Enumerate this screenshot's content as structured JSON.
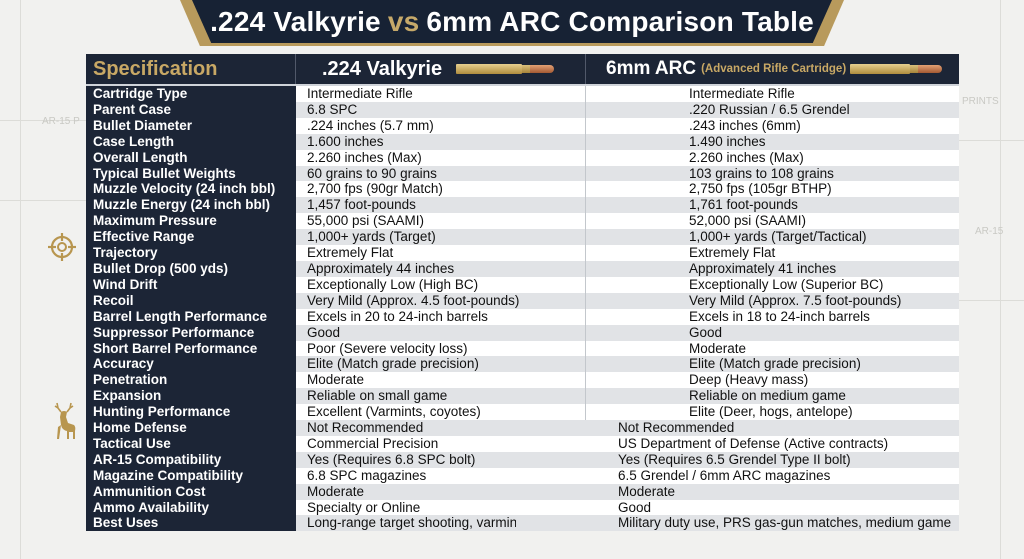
{
  "title": {
    "left": ".224 Valkyrie",
    "vs": "vs",
    "right": "6mm ARC Comparison Table"
  },
  "background_labels": [
    "AR-15 P",
    "PRINTS",
    "AR-15"
  ],
  "header": {
    "spec": "Specification",
    "col1": ".224 Valkyrie",
    "col2": "6mm ARC",
    "col2_sub": "(Advanced Rifle Cartridge)"
  },
  "colors": {
    "navy": "#1c2536",
    "gold": "#c8a865",
    "row_alt": "#e1e3e6"
  },
  "icons": [
    "cartridge-icon",
    "crosshair-icon",
    "deer-icon"
  ],
  "rows": [
    {
      "label": "Cartridge Type",
      "valkyrie": "Intermediate Rifle",
      "arc": "Intermediate Rifle"
    },
    {
      "label": "Parent Case",
      "valkyrie": "6.8 SPC",
      "arc": ".220 Russian  / 6.5 Grendel"
    },
    {
      "label": "Bullet Diameter",
      "valkyrie": ".224 inches (5.7 mm)",
      "arc": ".243 inches (6mm)"
    },
    {
      "label": "Case Length",
      "valkyrie": "1.600 inches",
      "arc": "1.490 inches"
    },
    {
      "label": "Overall Length",
      "valkyrie": "2.260 inches (Max)",
      "arc": "2.260 inches (Max)"
    },
    {
      "label": "Typical Bullet Weights",
      "valkyrie": "60 grains to 90 grains",
      "arc": "103 grains to 108 grains"
    },
    {
      "label": "Muzzle Velocity (24 inch bbl)",
      "valkyrie": "2,700 fps (90gr Match)",
      "arc": "2,750 fps (105gr BTHP)"
    },
    {
      "label": "Muzzle Energy (24 inch bbl)",
      "valkyrie": "1,457 foot-pounds",
      "arc": "1,761 foot-pounds"
    },
    {
      "label": "Maximum Pressure",
      "valkyrie": "55,000 psi (SAAMI)",
      "arc": "52,000 psi (SAAMI)"
    },
    {
      "label": "Effective Range",
      "valkyrie": "1,000+ yards (Target)",
      "arc": "1,000+ yards (Target/Tactical)"
    },
    {
      "label": "Trajectory",
      "valkyrie": "Extremely Flat",
      "arc": "Extremely Flat"
    },
    {
      "label": "Bullet Drop (500 yds)",
      "valkyrie": "Approximately 44 inches",
      "arc": "Approximately 41 inches"
    },
    {
      "label": "Wind Drift",
      "valkyrie": "Exceptionally Low (High BC)",
      "arc": "Exceptionally Low (Superior BC)"
    },
    {
      "label": "Recoil",
      "valkyrie": "Very Mild (Approx. 4.5 foot-pounds)",
      "arc": "Very Mild (Approx. 7.5 foot-pounds)"
    },
    {
      "label": "Barrel Length Performance",
      "valkyrie": "Excels in 20 to 24-inch barrels",
      "arc": "Excels in 18 to 24-inch barrels"
    },
    {
      "label": "Suppressor Performance",
      "valkyrie": "Good",
      "arc": "Good"
    },
    {
      "label": "Short Barrel Performance",
      "valkyrie": "Poor (Severe velocity loss)",
      "arc": "Moderate"
    },
    {
      "label": "Accuracy",
      "valkyrie": "Elite (Match grade precision)",
      "arc": "Elite (Match grade precision)"
    },
    {
      "label": "Penetration",
      "valkyrie": "Moderate",
      "arc": "Deep (Heavy mass)"
    },
    {
      "label": "Expansion",
      "valkyrie": "Reliable on small game",
      "arc": "Reliable on medium game"
    },
    {
      "label": "Hunting Performance",
      "valkyrie": "Excellent (Varmints, coyotes)",
      "arc": "Elite (Deer, hogs, antelope)"
    },
    {
      "label": "Home Defense",
      "valkyrie": "Not Recommended",
      "arc": "Not Recommended",
      "wide": true
    },
    {
      "label": "Tactical Use",
      "valkyrie": "Commercial Precision",
      "arc": "US Department of Defense (Active contracts)",
      "wide": true
    },
    {
      "label": "AR-15 Compatibility",
      "valkyrie": "Yes (Requires 6.8 SPC bolt)",
      "arc": "Yes (Requires 6.5 Grendel Type II bolt)",
      "wide": true
    },
    {
      "label": "Magazine Compatibility",
      "valkyrie": "6.8 SPC magazines",
      "arc": "6.5 Grendel / 6mm ARC magazines",
      "wide": true
    },
    {
      "label": "Ammunition Cost",
      "valkyrie": "Moderate",
      "arc": "Moderate",
      "wide": true
    },
    {
      "label": "Ammo Availability",
      "valkyrie": "Specialty or Online",
      "arc": "Good",
      "wide": true
    },
    {
      "label": "Best Uses",
      "valkyrie": "Long-range target shooting, varmints",
      "arc": "Military duty use, PRS gas-gun matches, medium game",
      "wide": true
    }
  ]
}
